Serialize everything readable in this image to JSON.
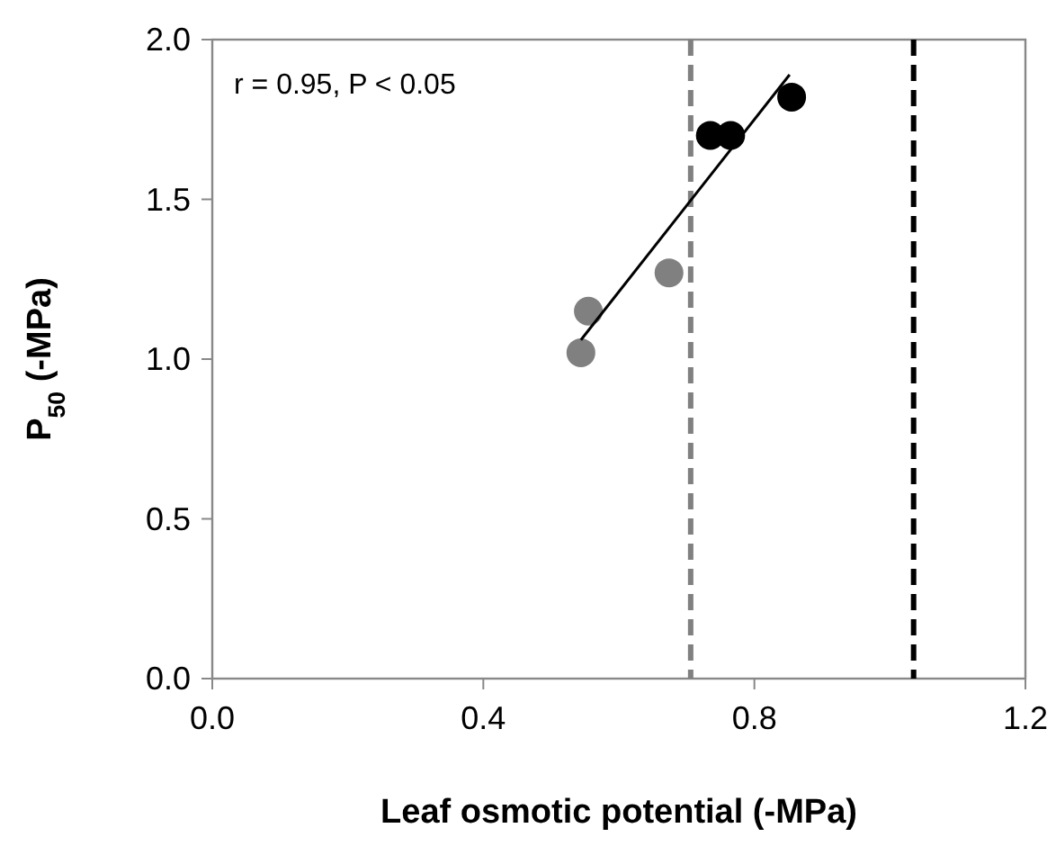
{
  "chart_data": {
    "type": "scatter",
    "xlabel": "Leaf osmotic potential (-MPa)",
    "ylabel": "P$_{50}$ (-MPa)",
    "annotations": [
      "r = 0.95, P < 0.05"
    ],
    "xlim": [
      0,
      1.2
    ],
    "xticks": [
      {
        "value": 0,
        "label": "0.0"
      },
      0.4,
      0.8,
      {
        "value": 1.2,
        "label": "1.2"
      }
    ],
    "ylim": [
      0,
      2
    ],
    "yticks": [
      {
        "value": 0,
        "label": "0.0"
      },
      0.5,
      {
        "value": 1,
        "label": "1.0"
      },
      1.5,
      {
        "value": 2,
        "label": "2.0"
      }
    ],
    "marker": "circle",
    "series": [
      {
        "color": "#808080",
        "x": [
          0.544,
          0.555,
          0.674
        ],
        "values": [
          1.02,
          1.15,
          1.27
        ]
      },
      {
        "color": "#000000",
        "x": [
          0.735,
          0.765,
          0.855
        ],
        "values": [
          1.7,
          1.7,
          1.82
        ]
      },
      {
        "type": "line",
        "color": "#000000",
        "x": [
          0.544,
          0.852
        ],
        "values": [
          1.06,
          1.89
        ],
        "marker": "none"
      }
    ],
    "ref_lines": [
      {
        "axis": "x",
        "value": 0.706,
        "color": "#808080",
        "line_style": "dashed"
      },
      {
        "axis": "x",
        "value": 1.035,
        "color": "#000000",
        "line_style": "dashed"
      }
    ]
  }
}
